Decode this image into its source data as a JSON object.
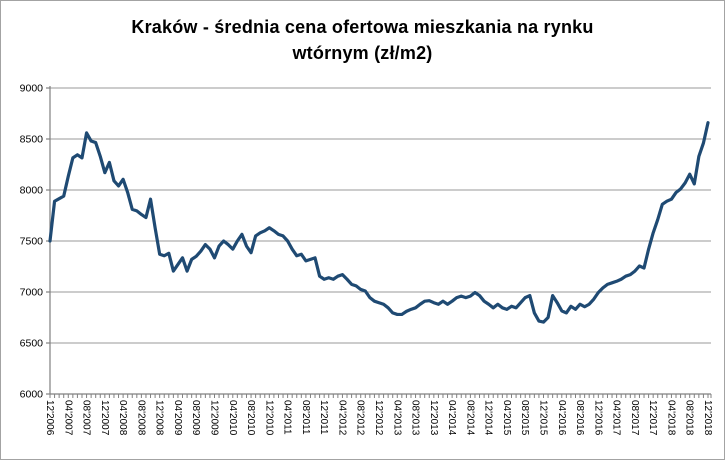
{
  "chart_data": {
    "type": "line",
    "title": "Kraków - średnia cena ofertowa mieszkania na rynku wtórnym (zł/m2)",
    "title_lines": [
      "Kraków - średnia cena ofertowa mieszkania na rynku",
      "wtórnym (zł/m2)"
    ],
    "series_name": "średnia cena ofertowa (zł/m2)",
    "legend_position": "none",
    "grid": "horizontal",
    "ylim": [
      6000,
      9000
    ],
    "ytick_step": 500,
    "yticks": [
      6000,
      6500,
      7000,
      7500,
      8000,
      8500,
      9000
    ],
    "x_is_monthly": true,
    "x_first": "12'2006",
    "x_last": "12'2018",
    "x_label_every": 4,
    "x_tick_labels": [
      "12'2006",
      "04'2007",
      "08'2007",
      "12'2007",
      "04'2008",
      "08'2008",
      "12'2008",
      "04'2009",
      "08'2009",
      "12'2009",
      "04'2010",
      "08'2010",
      "12'2010",
      "04'2011",
      "08'2011",
      "12'2011",
      "04'2012",
      "08'2012",
      "12'2012",
      "04'2013",
      "08'2013",
      "12'2013",
      "04'2014",
      "08'2014",
      "12'2014",
      "04'2015",
      "08'2015",
      "12'2015",
      "04'2016",
      "08'2016",
      "12'2016",
      "04'2017",
      "08'2017",
      "12'2017",
      "04'2018",
      "08'2018",
      "12'2018"
    ],
    "values": [
      7500,
      7890,
      7915,
      7940,
      8135,
      8315,
      8345,
      8315,
      8560,
      8480,
      8465,
      8330,
      8170,
      8270,
      8090,
      8040,
      8105,
      7975,
      7810,
      7795,
      7760,
      7730,
      7910,
      7630,
      7370,
      7355,
      7380,
      7205,
      7270,
      7335,
      7205,
      7320,
      7350,
      7400,
      7465,
      7420,
      7335,
      7450,
      7500,
      7465,
      7420,
      7500,
      7565,
      7450,
      7385,
      7550,
      7580,
      7600,
      7630,
      7600,
      7565,
      7550,
      7500,
      7420,
      7355,
      7370,
      7305,
      7320,
      7335,
      7155,
      7125,
      7140,
      7125,
      7155,
      7170,
      7125,
      7075,
      7060,
      7025,
      7010,
      6945,
      6910,
      6895,
      6880,
      6845,
      6795,
      6780,
      6780,
      6810,
      6830,
      6845,
      6880,
      6910,
      6915,
      6895,
      6880,
      6910,
      6880,
      6910,
      6945,
      6960,
      6945,
      6960,
      6995,
      6965,
      6910,
      6880,
      6845,
      6880,
      6845,
      6830,
      6860,
      6845,
      6895,
      6945,
      6965,
      6795,
      6715,
      6705,
      6750,
      6965,
      6895,
      6815,
      6795,
      6860,
      6830,
      6880,
      6855,
      6880,
      6930,
      6995,
      7040,
      7075,
      7090,
      7105,
      7125,
      7155,
      7170,
      7205,
      7255,
      7235,
      7420,
      7580,
      7710,
      7860,
      7890,
      7910,
      7975,
      8010,
      8070,
      8155,
      8060,
      8330,
      8460,
      8660
    ],
    "colors": {
      "line": "#1f4a73",
      "gridline": "#999999",
      "axis": "#808080",
      "tick": "#808080",
      "label": "#000000",
      "frame_border": "#a3a3a3",
      "background": "#ffffff"
    }
  }
}
